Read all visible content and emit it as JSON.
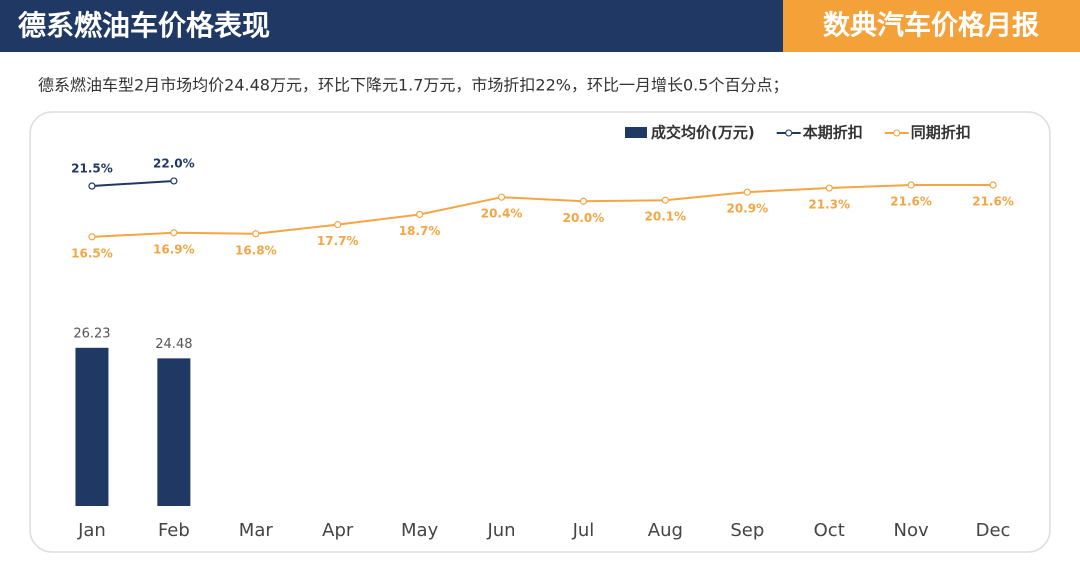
{
  "header": {
    "title": "德系燃油车价格表现",
    "brand": "数典汽车价格月报"
  },
  "chart_data": {
    "type": "bar",
    "subtitle": "德系燃油车型2月市场均价24.48万元，环比下降元1.7万元，市场折扣22%，环比一月增长0.5个百分点；",
    "categories": [
      "Jan",
      "Feb",
      "Mar",
      "Apr",
      "May",
      "Jun",
      "Jul",
      "Aug",
      "Sep",
      "Oct",
      "Nov",
      "Dec"
    ],
    "series": [
      {
        "name": "成交均价(万元)",
        "type": "bar",
        "color": "#1f3864",
        "values": [
          26.23,
          24.48,
          null,
          null,
          null,
          null,
          null,
          null,
          null,
          null,
          null,
          null
        ]
      },
      {
        "name": "本期折扣",
        "type": "line",
        "axis": "y2",
        "color": "#1f3864",
        "values": [
          21.5,
          22.0,
          null,
          null,
          null,
          null,
          null,
          null,
          null,
          null,
          null,
          null
        ],
        "value_labels": [
          "21.5%",
          "22.0%",
          null,
          null,
          null,
          null,
          null,
          null,
          null,
          null,
          null,
          null
        ]
      },
      {
        "name": "同期折扣",
        "type": "line",
        "axis": "y2",
        "color": "#f4a544",
        "values": [
          16.5,
          16.9,
          16.8,
          17.7,
          18.7,
          20.4,
          20.0,
          20.1,
          20.9,
          21.3,
          21.6,
          21.6
        ],
        "value_labels": [
          "16.5%",
          "16.9%",
          "16.8%",
          "17.7%",
          "18.7%",
          "20.4%",
          "20.0%",
          "20.1%",
          "20.9%",
          "21.3%",
          "21.6%",
          "21.6%"
        ]
      }
    ],
    "ylim": [
      0,
      64
    ],
    "y2lim": [
      -10,
      28
    ],
    "legend": "top-right"
  }
}
